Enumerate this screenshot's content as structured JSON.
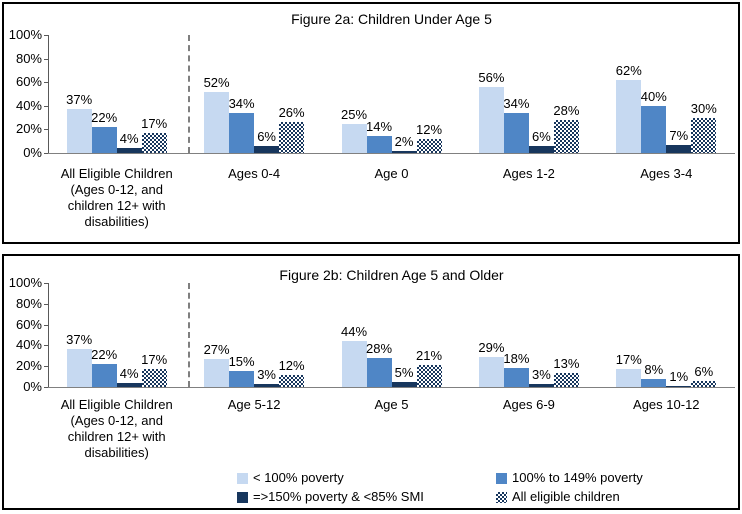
{
  "colors": {
    "light_blue": "#C6D9F1",
    "medium_blue": "#4F86C6",
    "dark_navy": "#17365D",
    "axis_gray": "#595959",
    "baseline_gray": "#808080",
    "separator_gray": "#7F7F7F",
    "panel_border": "#000000"
  },
  "legend": {
    "items": [
      {
        "label": "< 100% poverty",
        "swatch": "light-blue"
      },
      {
        "label": "100% to 149% poverty",
        "swatch": "medium-blue"
      },
      {
        "label": "=>150% poverty & <85% SMI",
        "swatch": "dark-navy"
      },
      {
        "label": "All eligible children",
        "swatch": "pattern"
      }
    ]
  },
  "chart_data": [
    {
      "type": "bar",
      "title": "Figure 2a: Children Under Age 5",
      "categories": [
        "All Eligible Children\n(Ages 0-12, and\nchildren 12+ with\ndisabilities)",
        "Ages 0-4",
        "Age 0",
        "Ages 1-2",
        "Ages 3-4"
      ],
      "series": [
        {
          "name": "< 100% poverty",
          "values": [
            37,
            52,
            25,
            56,
            62
          ]
        },
        {
          "name": "100% to 149% poverty",
          "values": [
            22,
            34,
            14,
            34,
            40
          ]
        },
        {
          "name": "=>150% poverty & <85% SMI",
          "values": [
            4,
            6,
            2,
            6,
            7
          ]
        },
        {
          "name": "All eligible children",
          "values": [
            17,
            26,
            12,
            28,
            30
          ]
        }
      ],
      "ylim": [
        0,
        100
      ],
      "ytick_labels": [
        "0%",
        "20%",
        "40%",
        "60%",
        "80%",
        "100%"
      ],
      "xlabel": "",
      "ylabel": "",
      "grid": false,
      "value_label_suffix": "%",
      "separator_after_category_index": 0
    },
    {
      "type": "bar",
      "title": "Figure 2b: Children Age 5 and Older",
      "categories": [
        "All Eligible Children\n(Ages 0-12, and\nchildren 12+ with\ndisabilities)",
        "Age 5-12",
        "Age 5",
        "Ages 6-9",
        "Ages 10-12"
      ],
      "series": [
        {
          "name": "< 100% poverty",
          "values": [
            37,
            27,
            44,
            29,
            17
          ]
        },
        {
          "name": "100% to 149% poverty",
          "values": [
            22,
            15,
            28,
            18,
            8
          ]
        },
        {
          "name": "=>150% poverty & <85% SMI",
          "values": [
            4,
            3,
            5,
            3,
            1
          ]
        },
        {
          "name": "All eligible children",
          "values": [
            17,
            12,
            21,
            13,
            6
          ]
        }
      ],
      "ylim": [
        0,
        100
      ],
      "ytick_labels": [
        "0%",
        "20%",
        "40%",
        "60%",
        "80%",
        "100%"
      ],
      "xlabel": "",
      "ylabel": "",
      "grid": false,
      "value_label_suffix": "%",
      "separator_after_category_index": 0,
      "legend_position": "bottom"
    }
  ]
}
